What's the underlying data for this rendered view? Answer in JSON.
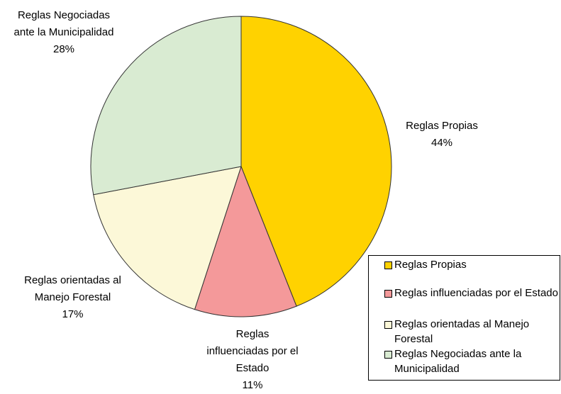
{
  "chart_data": {
    "type": "pie",
    "categories": [
      "Reglas Propias",
      "Reglas influenciadas por el Estado",
      "Reglas orientadas al Manejo Forestal",
      "Reglas Negociadas ante la Municipalidad"
    ],
    "values": [
      44,
      11,
      17,
      28
    ],
    "value_labels": [
      "44%",
      "11%",
      "17%",
      "28%"
    ],
    "colors": [
      "#FFD200",
      "#F4999A",
      "#FCF8D8",
      "#D9EBD2"
    ],
    "legend": "bottom-right"
  }
}
